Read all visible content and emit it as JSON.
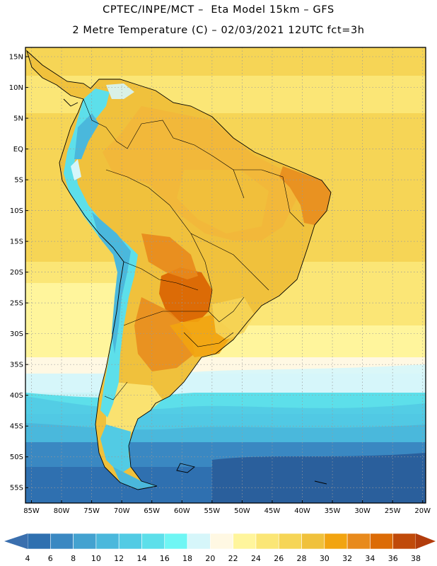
{
  "header": {
    "line1": "CPTEC/INPE/MCT –  Eta Model 15km – GFS",
    "line2": "2 Metre Temperature (C) – 02/03/2021 12UTC fct=3h"
  },
  "map": {
    "lat_ticks": [
      "15N",
      "10N",
      "5N",
      "EQ",
      "5S",
      "10S",
      "15S",
      "20S",
      "25S",
      "30S",
      "35S",
      "40S",
      "45S",
      "50S",
      "55S"
    ],
    "lon_ticks": [
      "85W",
      "80W",
      "75W",
      "70W",
      "65W",
      "60W",
      "55W",
      "50W",
      "45W",
      "40W",
      "35W",
      "30W",
      "25W",
      "20W"
    ],
    "lat_values": [
      15,
      10,
      5,
      0,
      -5,
      -10,
      -15,
      -20,
      -25,
      -30,
      -35,
      -40,
      -45,
      -50,
      -55
    ],
    "lon_values": [
      -85,
      -80,
      -75,
      -70,
      -65,
      -60,
      -55,
      -50,
      -45,
      -40,
      -35,
      -30,
      -25,
      -20
    ],
    "extent": {
      "lon_min": -86,
      "lon_max": -19.5,
      "lat_min": -57.5,
      "lat_max": 16.5
    }
  },
  "colorbar": {
    "labels": [
      "4",
      "6",
      "8",
      "10",
      "12",
      "14",
      "16",
      "18",
      "20",
      "22",
      "24",
      "26",
      "28",
      "30",
      "32",
      "34",
      "36",
      "38"
    ],
    "colors": [
      "#2f70b0",
      "#3a88c2",
      "#43a2d0",
      "#4ab8dc",
      "#52cbe4",
      "#5ddfea",
      "#6ff6f4",
      "#d6f6fa",
      "#fff8e3",
      "#fff59c",
      "#fbe676",
      "#f6d556",
      "#f0c13c",
      "#f2a410",
      "#e88a1c",
      "#dc6b06",
      "#c04a0a"
    ],
    "low_color": "#3a6fae",
    "high_color": "#b23c0c"
  }
}
